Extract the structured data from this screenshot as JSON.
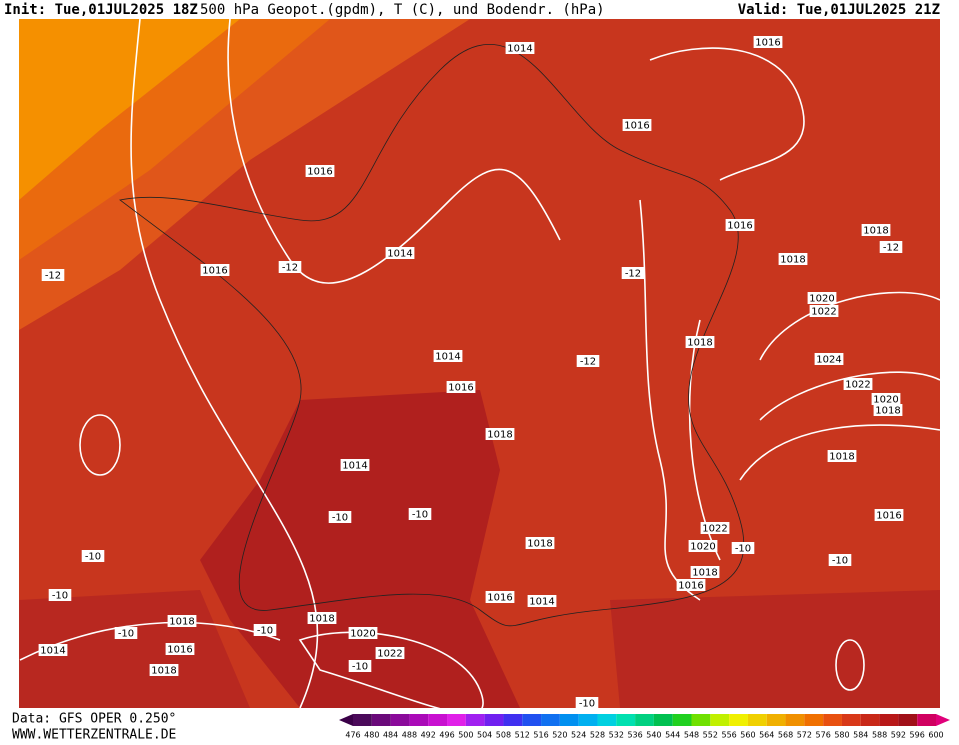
{
  "header": {
    "init": "Init: Tue,01JUL2025 18Z",
    "title": "500 hPa Geopot.(gpdm), T (C), und Bodendr. (hPa)",
    "valid": "Valid: Tue,01JUL2025 21Z"
  },
  "map": {
    "labels": [
      "1014",
      "1016",
      "1016",
      "1016",
      "1016",
      "1018",
      "-12",
      "1018",
      "1014",
      "-12",
      "1016",
      "-12",
      "-12",
      "1020",
      "1022",
      "1018",
      "1014",
      "-12",
      "1024",
      "1022",
      "1016",
      "1020",
      "1018",
      "1018",
      "1018",
      "1014",
      "-10",
      "-10",
      "1016",
      "1022",
      "1018",
      "1020",
      "-10",
      "-10",
      "-10",
      "1018",
      "1016",
      "-10",
      "1016",
      "1014",
      "1018",
      "1018",
      "-10",
      "-10",
      "1020",
      "1016",
      "1014",
      "1022",
      "-10",
      "1018",
      "-10"
    ]
  },
  "footer": {
    "data": "Data: GFS OPER 0.250°",
    "site": "WWW.WETTERZENTRALE.DE"
  },
  "scale": {
    "labels": [
      "476",
      "480",
      "484",
      "488",
      "492",
      "496",
      "500",
      "504",
      "508",
      "512",
      "516",
      "520",
      "524",
      "528",
      "532",
      "536",
      "540",
      "544",
      "548",
      "552",
      "556",
      "560",
      "564",
      "568",
      "572",
      "576",
      "580",
      "584",
      "588",
      "592",
      "596",
      "600"
    ]
  }
}
